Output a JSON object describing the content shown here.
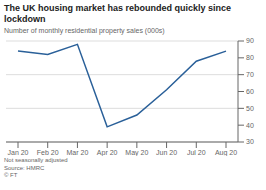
{
  "chart_data": {
    "type": "line",
    "title": "The UK housing market has rebounded quickly since lockdown",
    "subtitle": "Number of monthly residential property sales (000s)",
    "annotations": [
      "Not seasonally adjusted",
      "Source: HMRC",
      "© FT"
    ],
    "categories": [
      "Jan 20",
      "Feb 20",
      "Mar 20",
      "Apr 20",
      "May 20",
      "Jun 20",
      "Jul 20",
      "Aug 20"
    ],
    "values": [
      84,
      82,
      88,
      39,
      46,
      61,
      78,
      84
    ],
    "color": "#2a6099",
    "ylim": [
      30,
      90
    ],
    "yticks": [
      30,
      40,
      50,
      60,
      70,
      80,
      90
    ],
    "grid": true
  }
}
